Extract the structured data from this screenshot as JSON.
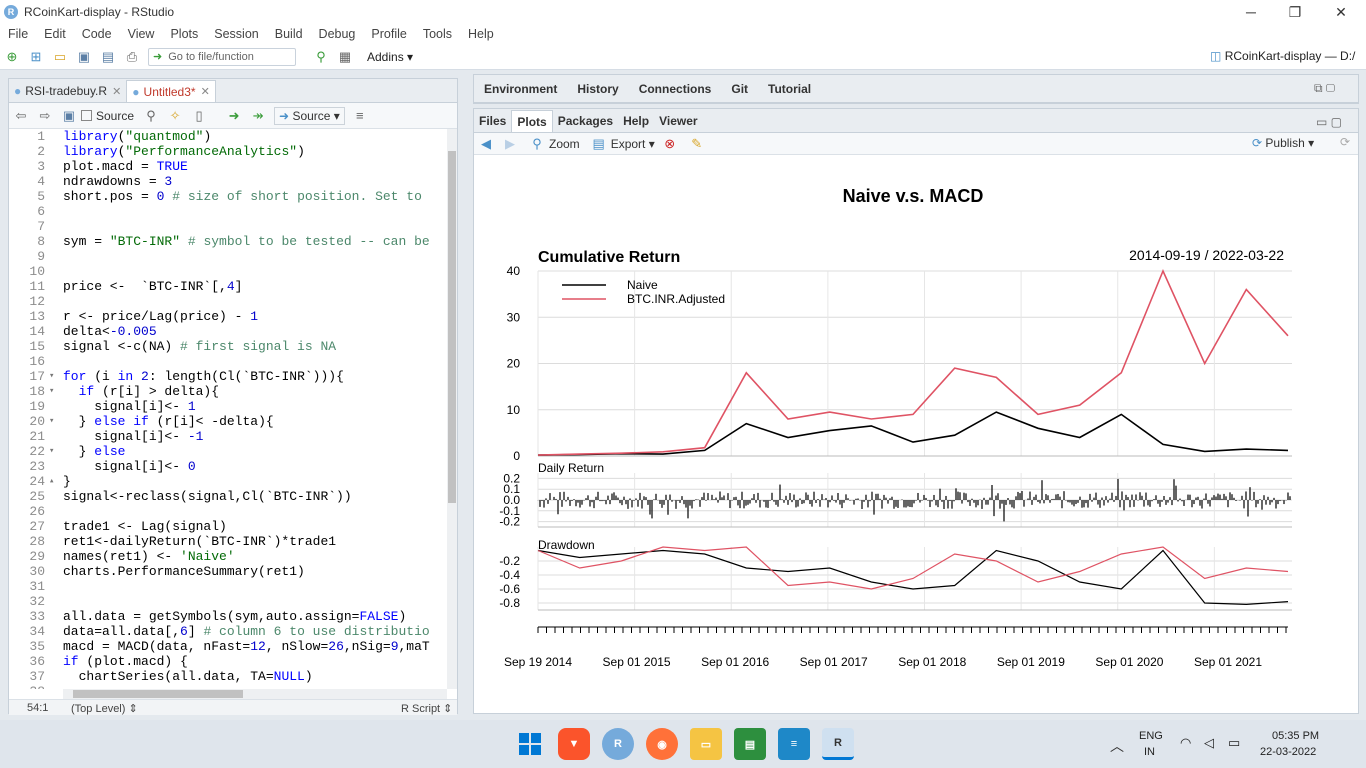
{
  "window": {
    "title": "RCoinKart-display - RStudio",
    "minimize": "─",
    "maximize": "❐",
    "close": "✕"
  },
  "menu": [
    "File",
    "Edit",
    "Code",
    "View",
    "Plots",
    "Session",
    "Build",
    "Debug",
    "Profile",
    "Tools",
    "Help"
  ],
  "toolbar": {
    "goto_placeholder": "Go to file/function",
    "addins": "Addins",
    "project": "RCoinKart-display — D:/"
  },
  "editor": {
    "tabs": [
      {
        "label": "RSI-tradebuy.R",
        "close": "✕"
      },
      {
        "label": "Untitled3*",
        "close": "✕"
      }
    ],
    "source_on_save": "Source",
    "source_button": "Source",
    "status": {
      "position": "54:1",
      "scope": "(Top Level) ⇕",
      "filetype": "R Script ⇕"
    },
    "lines": [
      {
        "n": "1",
        "t": "library(\"quantmod\")"
      },
      {
        "n": "2",
        "t": "library(\"PerformanceAnalytics\")"
      },
      {
        "n": "3",
        "t": "plot.macd = TRUE"
      },
      {
        "n": "4",
        "t": "ndrawdowns = 3"
      },
      {
        "n": "5",
        "t": "short.pos = 0 # size of short position. Set to"
      },
      {
        "n": "6",
        "t": ""
      },
      {
        "n": "7",
        "t": ""
      },
      {
        "n": "8",
        "t": "sym = \"BTC-INR\" # symbol to be tested -- can be"
      },
      {
        "n": "9",
        "t": ""
      },
      {
        "n": "10",
        "t": ""
      },
      {
        "n": "11",
        "t": "price <-  `BTC-INR`[,4]"
      },
      {
        "n": "12",
        "t": ""
      },
      {
        "n": "13",
        "t": "r <- price/Lag(price) - 1"
      },
      {
        "n": "14",
        "t": "delta<-0.005"
      },
      {
        "n": "15",
        "t": "signal <-c(NA) # first signal is NA"
      },
      {
        "n": "16",
        "t": ""
      },
      {
        "n": "17",
        "t": "for (i in 2: length(Cl(`BTC-INR`))){"
      },
      {
        "n": "18",
        "t": "  if (r[i] > delta){"
      },
      {
        "n": "19",
        "t": "    signal[i]<- 1"
      },
      {
        "n": "20",
        "t": "  } else if (r[i]< -delta){"
      },
      {
        "n": "21",
        "t": "    signal[i]<- -1"
      },
      {
        "n": "22",
        "t": "  } else"
      },
      {
        "n": "23",
        "t": "    signal[i]<- 0"
      },
      {
        "n": "24",
        "t": "}"
      },
      {
        "n": "25",
        "t": "signal<-reclass(signal,Cl(`BTC-INR`))"
      },
      {
        "n": "26",
        "t": ""
      },
      {
        "n": "27",
        "t": "trade1 <- Lag(signal)"
      },
      {
        "n": "28",
        "t": "ret1<-dailyReturn(`BTC-INR`)*trade1"
      },
      {
        "n": "29",
        "t": "names(ret1) <- 'Naive'"
      },
      {
        "n": "30",
        "t": "charts.PerformanceSummary(ret1)"
      },
      {
        "n": "31",
        "t": ""
      },
      {
        "n": "32",
        "t": ""
      },
      {
        "n": "33",
        "t": "all.data = getSymbols(sym,auto.assign=FALSE)"
      },
      {
        "n": "34",
        "t": "data=all.data[,6] # column 6 to use distributio"
      },
      {
        "n": "35",
        "t": "macd = MACD(data, nFast=12, nSlow=26,nSig=9,maT"
      },
      {
        "n": "36",
        "t": "if (plot.macd) {"
      },
      {
        "n": "37",
        "t": "  chartSeries(all.data, TA=NULL)"
      },
      {
        "n": "38",
        "t": ""
      }
    ]
  },
  "env_tabs": [
    "Environment",
    "History",
    "Connections",
    "Git",
    "Tutorial"
  ],
  "plot_tabs": [
    "Files",
    "Plots",
    "Packages",
    "Help",
    "Viewer"
  ],
  "plot_toolbar": {
    "zoom": "Zoom",
    "export": "Export ▾",
    "publish": "Publish ▾"
  },
  "chart_data": {
    "type": "line",
    "title": "Naive v.s. MACD",
    "panels": [
      {
        "title": "Cumulative Return",
        "date_range": "2014-09-19 / 2022-03-22",
        "yticks": [
          "40",
          "30",
          "20",
          "10",
          "0"
        ],
        "ylim": [
          0,
          40
        ]
      },
      {
        "title": "Daily Return",
        "yticks": [
          "0.2",
          "0.1",
          "0.0",
          "-0.1",
          "-0.2"
        ],
        "ylim": [
          -0.25,
          0.25
        ]
      },
      {
        "title": "Drawdown",
        "yticks": [
          "-0.2",
          "-0.4",
          "-0.6",
          "-0.8"
        ],
        "ylim": [
          -0.9,
          0
        ]
      }
    ],
    "x_labels": [
      "Sep 19 2014",
      "Sep 01 2015",
      "Sep 01 2016",
      "Sep 01 2017",
      "Sep 01 2018",
      "Sep 01 2019",
      "Sep 01 2020",
      "Sep 01 2021"
    ],
    "legend": {
      "placement": "top-left",
      "entries": [
        {
          "name": "Naive",
          "color": "#000000"
        },
        {
          "name": "BTC.INR.Adjusted",
          "color": "#df5364"
        }
      ]
    },
    "series": [
      {
        "name": "Naive",
        "values": [
          0.2,
          0.3,
          0.5,
          0.4,
          1.2,
          7.0,
          4.0,
          5.5,
          6.5,
          3.0,
          4.5,
          9.5,
          6.0,
          4.0,
          9.0,
          2.5,
          1.0,
          1.5,
          1.2
        ]
      },
      {
        "name": "BTC.INR.Adjusted",
        "values": [
          0.2,
          0.4,
          0.6,
          0.9,
          1.8,
          18.0,
          8.0,
          9.5,
          8.0,
          9.0,
          19.0,
          17.0,
          9.0,
          11.0,
          18.0,
          40.0,
          20.0,
          36.0,
          26.0
        ]
      }
    ],
    "drawdown_series": [
      {
        "name": "Naive",
        "values": [
          -0.05,
          -0.15,
          -0.1,
          -0.05,
          -0.1,
          -0.3,
          -0.35,
          -0.3,
          -0.5,
          -0.6,
          -0.55,
          -0.05,
          -0.2,
          -0.5,
          -0.6,
          -0.05,
          -0.8,
          -0.82,
          -0.78
        ]
      },
      {
        "name": "BTC.INR.Adjusted",
        "values": [
          -0.05,
          -0.3,
          -0.2,
          0.0,
          -0.05,
          0.0,
          -0.55,
          -0.5,
          -0.6,
          -0.45,
          -0.1,
          -0.2,
          -0.5,
          -0.35,
          -0.1,
          0.0,
          -0.45,
          -0.3,
          -0.35
        ]
      }
    ]
  },
  "taskbar": {
    "lang1": "ENG",
    "lang2": "IN",
    "time": "05:35 PM",
    "date": "22-03-2022"
  },
  "colors": {
    "accent": "#75aadb",
    "btc": "#df5364",
    "naive": "#000000"
  }
}
